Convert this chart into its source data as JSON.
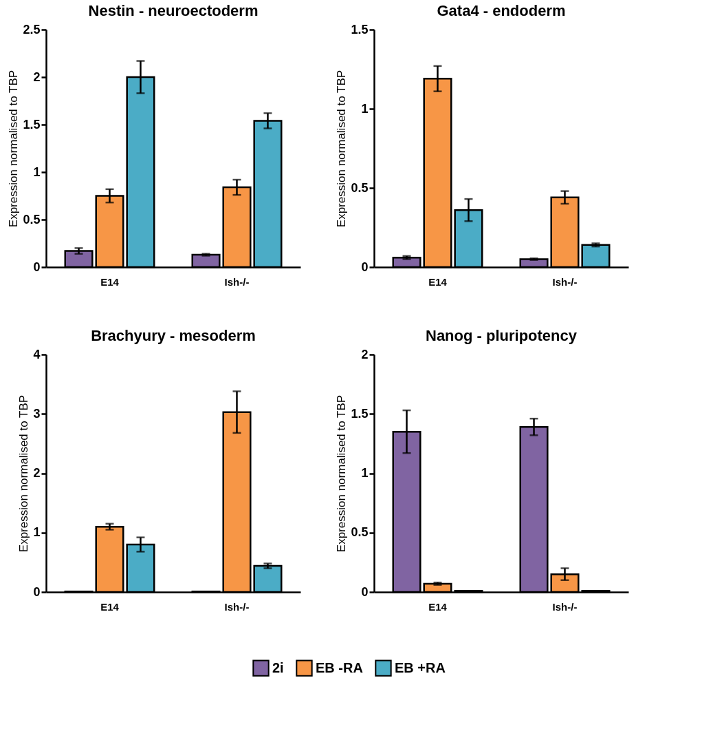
{
  "chart_data": [
    {
      "type": "bar",
      "title": "Nestin - neuroectoderm",
      "ylabel": "Expression normalised to TBP",
      "categories": [
        "E14",
        "Ish-/-"
      ],
      "ylim": [
        0,
        2.5
      ],
      "yticks": [
        0,
        0.5,
        1,
        1.5,
        2,
        2.5
      ],
      "grid": false,
      "legend": "bottom",
      "series": [
        {
          "name": "2i",
          "color": "#8064a2",
          "values": [
            0.17,
            0.13
          ],
          "errors": [
            0.03,
            0.01
          ]
        },
        {
          "name": "EB -RA",
          "color": "#f79646",
          "values": [
            0.75,
            0.84
          ],
          "errors": [
            0.07,
            0.08
          ]
        },
        {
          "name": "EB +RA",
          "color": "#4bacc6",
          "values": [
            2.0,
            1.54
          ],
          "errors": [
            0.17,
            0.08
          ]
        }
      ]
    },
    {
      "type": "bar",
      "title": "Gata4 - endoderm",
      "ylabel": "Expression normalised to TBP",
      "categories": [
        "E14",
        "Ish-/-"
      ],
      "ylim": [
        0,
        1.5
      ],
      "yticks": [
        0,
        0.5,
        1,
        1.5
      ],
      "grid": false,
      "legend": "bottom",
      "series": [
        {
          "name": "2i",
          "color": "#8064a2",
          "values": [
            0.06,
            0.05
          ],
          "errors": [
            0.01,
            0.005
          ]
        },
        {
          "name": "EB -RA",
          "color": "#f79646",
          "values": [
            1.19,
            0.44
          ],
          "errors": [
            0.08,
            0.04
          ]
        },
        {
          "name": "EB +RA",
          "color": "#4bacc6",
          "values": [
            0.36,
            0.14
          ],
          "errors": [
            0.07,
            0.01
          ]
        }
      ]
    },
    {
      "type": "bar",
      "title": "Brachyury - mesoderm",
      "ylabel": "Expression normalised to TBP",
      "categories": [
        "E14",
        "Ish-/-"
      ],
      "ylim": [
        0,
        4
      ],
      "yticks": [
        0,
        1,
        2,
        3,
        4
      ],
      "grid": false,
      "legend": "bottom",
      "series": [
        {
          "name": "2i",
          "color": "#8064a2",
          "values": [
            0.01,
            0.01
          ],
          "errors": [
            null,
            null
          ]
        },
        {
          "name": "EB -RA",
          "color": "#f79646",
          "values": [
            1.1,
            3.03
          ],
          "errors": [
            0.05,
            0.35
          ]
        },
        {
          "name": "EB +RA",
          "color": "#4bacc6",
          "values": [
            0.8,
            0.44
          ],
          "errors": [
            0.12,
            0.04
          ]
        }
      ]
    },
    {
      "type": "bar",
      "title": "Nanog - pluripotency",
      "ylabel": "Expression normalised to TBP",
      "categories": [
        "E14",
        "Ish-/-"
      ],
      "ylim": [
        0,
        2
      ],
      "yticks": [
        0,
        0.5,
        1,
        1.5,
        2
      ],
      "grid": false,
      "legend": "bottom",
      "series": [
        {
          "name": "2i",
          "color": "#8064a2",
          "values": [
            1.35,
            1.39
          ],
          "errors": [
            0.18,
            0.07
          ]
        },
        {
          "name": "EB -RA",
          "color": "#f79646",
          "values": [
            0.07,
            0.15
          ],
          "errors": [
            0.01,
            0.05
          ]
        },
        {
          "name": "EB +RA",
          "color": "#4bacc6",
          "values": [
            0.01,
            0.01
          ],
          "errors": [
            null,
            null
          ]
        }
      ]
    }
  ]
}
